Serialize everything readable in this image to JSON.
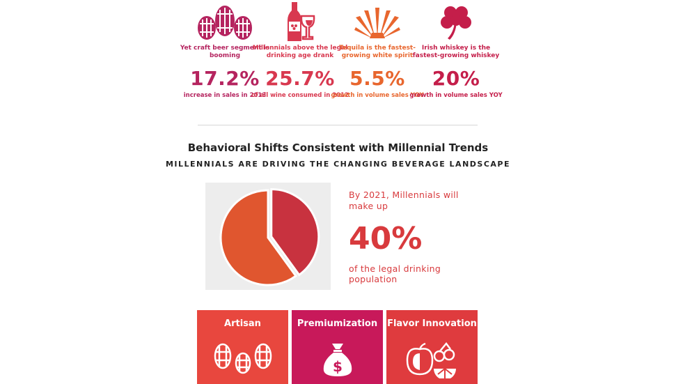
{
  "stats": [
    {
      "icon": "beer-barrels-icon",
      "color": "#b5245f",
      "desc": "Yet craft beer segment is booming",
      "value": "17.2%",
      "sub": "increase in sales in 2013"
    },
    {
      "icon": "wine-bottle-glass-icon",
      "color": "#d8384f",
      "desc": "Millennials above the legal drinking age drank",
      "value": "25.7%",
      "sub": "of all wine consumed in 2012"
    },
    {
      "icon": "agave-icon",
      "color": "#e8662e",
      "desc": "Tequila is the fastest-growing white spirit",
      "value": "5.5%",
      "sub": "growth in volume sales YOY"
    },
    {
      "icon": "shamrock-icon",
      "color": "#c41e4a",
      "desc": "Irish whiskey is the fastest-growing whiskey",
      "value": "20%",
      "sub": "growth in volume sales YOY"
    }
  ],
  "section": {
    "title": "Behavioral Shifts Consistent with Millennial Trends",
    "subtitle": "MILLENNIALS ARE DRIVING THE CHANGING BEVERAGE LANDSCAPE"
  },
  "callout": {
    "lead": "By 2021, Millennials will make up",
    "value": "40%",
    "tail": "of the legal drinking population"
  },
  "chart_data": {
    "type": "pie",
    "values": [
      40,
      60
    ],
    "colors": [
      "#c8323f",
      "#e0562f"
    ]
  },
  "tiles": [
    {
      "label": "Artisan",
      "color": "#e8473e",
      "icon": "barrels-icon"
    },
    {
      "label": "Premiumization",
      "color": "#c8195a",
      "icon": "money-bag-icon"
    },
    {
      "label": "Flavor Innovation",
      "color": "#df3b3e",
      "icon": "fruit-icon"
    }
  ]
}
